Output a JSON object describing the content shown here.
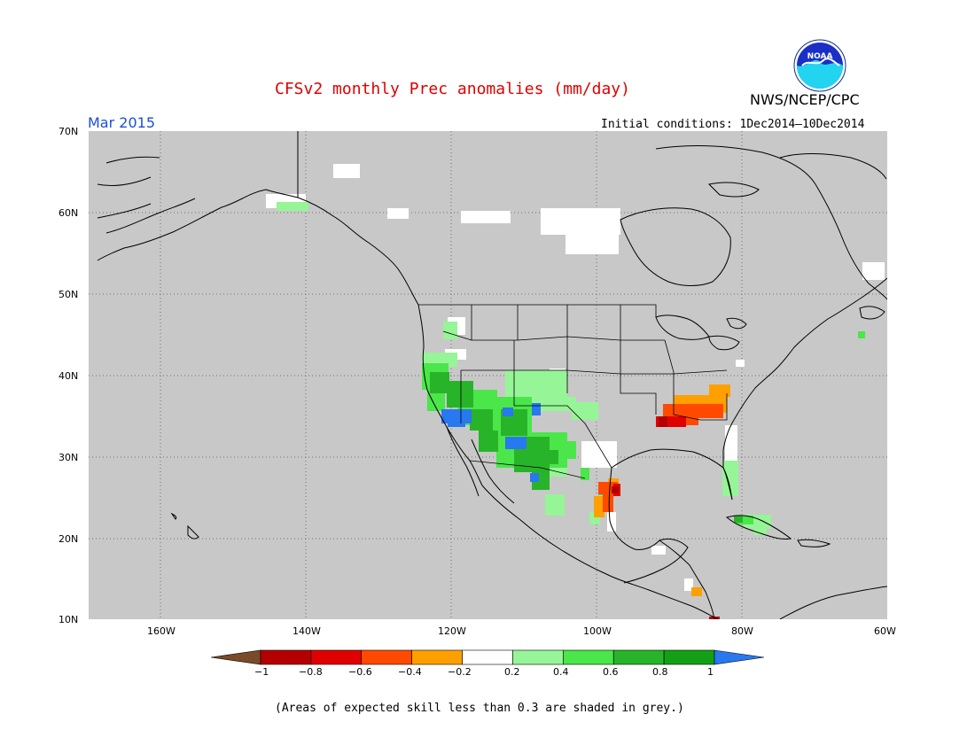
{
  "header": {
    "title": "CFSv2 monthly Prec anomalies (mm/day)",
    "agency": "NWS/NCEP/CPC",
    "month": "Mar 2015",
    "initial_conditions": "Initial conditions: 1Dec2014—10Dec2014",
    "logo_text": "NOAA"
  },
  "map": {
    "lat_labels": [
      "70N",
      "60N",
      "50N",
      "40N",
      "30N",
      "20N",
      "10N"
    ],
    "lon_labels": [
      "160W",
      "140W",
      "120W",
      "100W",
      "80W",
      "60W"
    ],
    "background_color": "#c8c8c8",
    "grid_style": "dotted"
  },
  "colorbar": {
    "labels": [
      "−1",
      "−0.8",
      "−0.6",
      "−0.4",
      "−0.2",
      "0.2",
      "0.4",
      "0.6",
      "0.8",
      "1"
    ],
    "colors": [
      "#7a4a2a",
      "#b40000",
      "#e00000",
      "#ff4a00",
      "#ffa000",
      "#ffffff",
      "#96f596",
      "#4ae64a",
      "#28b428",
      "#14a014",
      "#2878f0"
    ]
  },
  "footer": {
    "note": "(Areas of expected skill less than 0.3 are shaded in grey.)"
  }
}
